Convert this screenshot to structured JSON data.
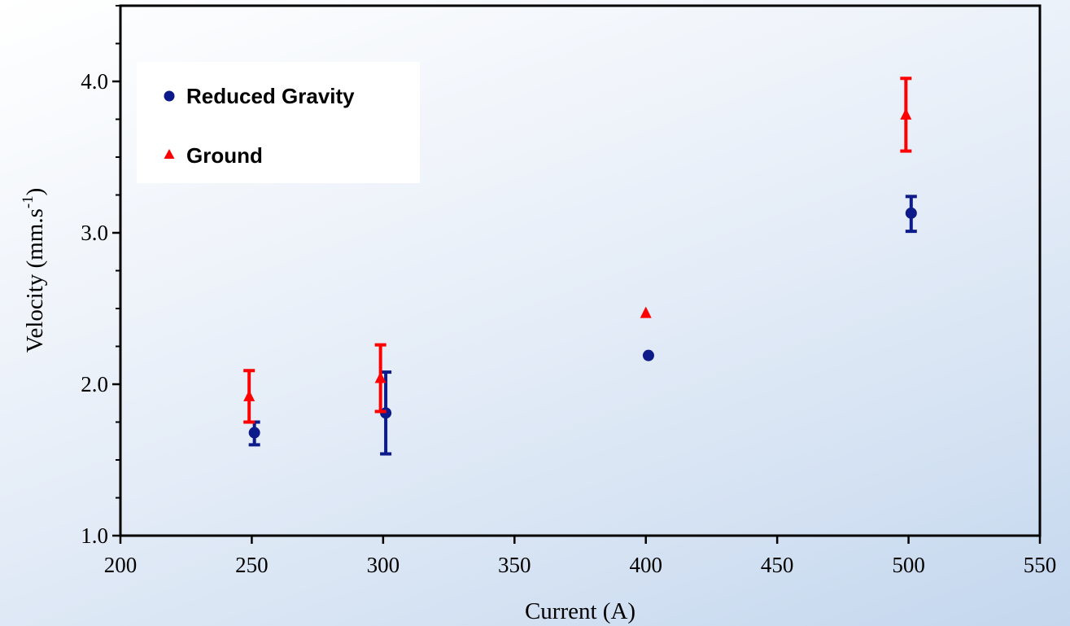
{
  "chart_data": {
    "type": "scatter",
    "xlabel": "Current (A)",
    "ylabel_main": "Velocity (mm.s",
    "ylabel_sup": "-1",
    "ylabel_close": ")",
    "xlim": [
      200,
      550
    ],
    "ylim": [
      1.0,
      4.5
    ],
    "x_ticks": [
      200,
      250,
      300,
      350,
      400,
      450,
      500,
      550
    ],
    "y_ticks": [
      1.0,
      2.0,
      3.0,
      4.0
    ],
    "y_tick_labels": [
      "1.0",
      "2.0",
      "3.0",
      "4.0"
    ],
    "grid": false,
    "legend_position": "top-left",
    "series": [
      {
        "name": "Reduced Gravity",
        "marker": "circle",
        "color": "#0d1a8a",
        "points": [
          {
            "x": 251,
            "y": 1.68,
            "err_low": 1.6,
            "err_high": 1.75
          },
          {
            "x": 301,
            "y": 1.81,
            "err_low": 1.54,
            "err_high": 2.08
          },
          {
            "x": 401,
            "y": 2.19
          },
          {
            "x": 501,
            "y": 3.13,
            "err_low": 3.01,
            "err_high": 3.24
          }
        ]
      },
      {
        "name": "Ground",
        "marker": "triangle",
        "color": "#ff0000",
        "points": [
          {
            "x": 249,
            "y": 1.92,
            "err_low": 1.75,
            "err_high": 2.09
          },
          {
            "x": 299,
            "y": 2.04,
            "err_low": 1.82,
            "err_high": 2.26
          },
          {
            "x": 400,
            "y": 2.47
          },
          {
            "x": 499,
            "y": 3.78,
            "err_low": 3.54,
            "err_high": 4.02
          }
        ]
      }
    ]
  }
}
